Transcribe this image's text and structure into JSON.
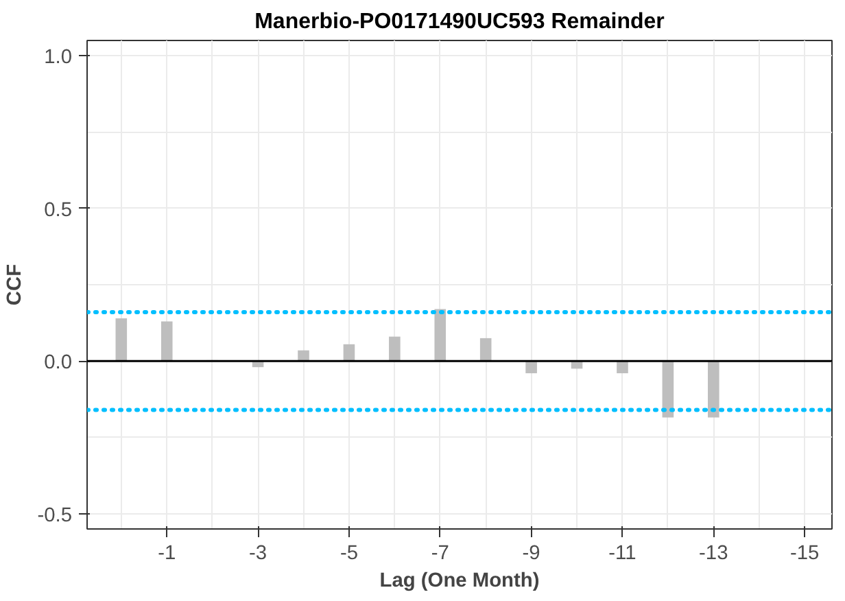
{
  "chart_data": {
    "type": "bar",
    "title": "Manerbio-PO0171490UC593 Remainder",
    "xlabel": "Lag (One Month)",
    "ylabel": "CCF",
    "x": [
      0,
      -1,
      -2,
      -3,
      -4,
      -5,
      -6,
      -7,
      -8,
      -9,
      -10,
      -11,
      -12,
      -13,
      -14,
      -15
    ],
    "values": [
      0.14,
      0.13,
      0.003,
      -0.02,
      0.035,
      0.055,
      0.08,
      0.17,
      0.075,
      -0.04,
      -0.025,
      -0.04,
      -0.185,
      -0.185,
      0.002,
      0.002
    ],
    "color": "#bebebe",
    "xlim": [
      0.75,
      -15.6
    ],
    "xticks": [
      {
        "value": 0,
        "label": null
      },
      -1,
      {
        "value": -2,
        "label": null
      },
      -3,
      {
        "value": -4,
        "label": null
      },
      -5,
      {
        "value": -6,
        "label": null
      },
      -7,
      {
        "value": -8,
        "label": null
      },
      -9,
      {
        "value": -10,
        "label": null
      },
      -11,
      {
        "value": -12,
        "label": null
      },
      -13,
      {
        "value": -14,
        "label": null
      },
      -15
    ],
    "ylim": [
      -0.55,
      1.05
    ],
    "yticks": [
      {
        "value": -0.5,
        "label": "-0.5"
      },
      {
        "value": -0.25,
        "label": null
      },
      {
        "value": 0,
        "label": "0.0"
      },
      {
        "value": 0.25,
        "label": null
      },
      {
        "value": 0.5,
        "label": "0.5"
      },
      {
        "value": 0.75,
        "label": null
      },
      {
        "value": 1,
        "label": "1.0"
      }
    ],
    "grid": true,
    "ref_lines": [
      {
        "axis": "y",
        "value": 0,
        "color": "#000000",
        "line_style": "solid"
      },
      {
        "axis": "y",
        "value": 0.16,
        "color": "#00bfff",
        "line_style": "dotted"
      },
      {
        "axis": "y",
        "value": -0.16,
        "color": "#00bfff",
        "line_style": "dotted"
      }
    ]
  }
}
